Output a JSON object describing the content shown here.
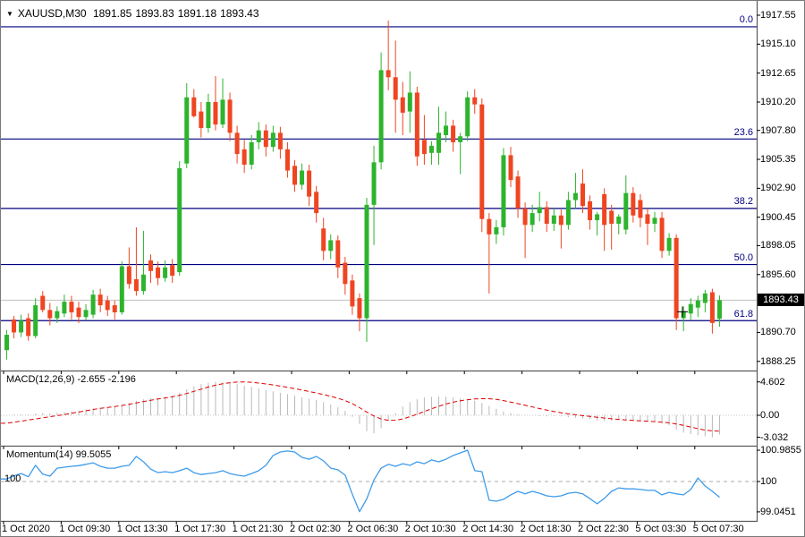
{
  "header": {
    "dropdown_icon": "▼",
    "symbol": "XAUUSD,M30",
    "open": "1891.85",
    "high": "1893.83",
    "low": "1891.18",
    "close": "1893.43"
  },
  "colors": {
    "bull_candle": "#2db42d",
    "bear_candle": "#ef4521",
    "fib_line": "#000080",
    "current_price_line": "#c0c0c0",
    "price_marker_bg": "#000000",
    "price_marker_text": "#ffffff",
    "macd_histogram": "#b9b9b9",
    "macd_signal": "#e00000",
    "macd_zero_line": "#c8c8c8",
    "momentum_line": "#3e9beb",
    "level_line": "#a8a8a8",
    "separator": "#5a5a5a",
    "marker_cross": "#000000"
  },
  "time_axis": {
    "labels": [
      "1 Oct 2020",
      "1 Oct 09:30",
      "1 Oct 13:30",
      "1 Oct 17:30",
      "1 Oct 21:30",
      "2 Oct 02:30",
      "2 Oct 06:30",
      "2 Oct 10:30",
      "2 Oct 14:30",
      "2 Oct 18:30",
      "2 Oct 22:30",
      "5 Oct 03:30",
      "5 Oct 07:30"
    ]
  },
  "chart_data": [
    {
      "type": "candlestick",
      "title": "XAUUSD M30 price panel",
      "ylim": [
        1888.25,
        1917.55
      ],
      "price_axis_ticks": [
        "1917.55",
        "1915.10",
        "1912.65",
        "1910.20",
        "1907.80",
        "1905.35",
        "1902.90",
        "1900.45",
        "1898.05",
        "1895.60",
        "1890.70",
        "1888.25"
      ],
      "current_price": 1893.43,
      "current_price_label": "1893.43",
      "fibonacci": {
        "high": 1916.57,
        "low": 1876.32,
        "levels": [
          {
            "label": "0.0",
            "pct": 0
          },
          {
            "label": "23.6",
            "pct": 23.6
          },
          {
            "label": "38.2",
            "pct": 38.2
          },
          {
            "label": "50.0",
            "pct": 50.0
          },
          {
            "label": "61.8",
            "pct": 61.8
          }
        ]
      },
      "anchor_marker": {
        "x": 762,
        "price": 1892.45
      },
      "candles_ohlc": [
        [
          1889.2,
          1890.9,
          1888.4,
          1890.5
        ],
        [
          1891.8,
          1892.1,
          1890.2,
          1890.7
        ],
        [
          1890.7,
          1892.2,
          1890.3,
          1891.7
        ],
        [
          1891.9,
          1892.3,
          1890.0,
          1890.4
        ],
        [
          1890.4,
          1893.6,
          1890.2,
          1893.0
        ],
        [
          1893.8,
          1894.2,
          1892.4,
          1892.6
        ],
        [
          1892.6,
          1893.2,
          1891.3,
          1891.9
        ],
        [
          1891.9,
          1892.9,
          1891.5,
          1892.5
        ],
        [
          1892.3,
          1893.9,
          1892.0,
          1893.3
        ],
        [
          1893.3,
          1893.8,
          1891.8,
          1892.4
        ],
        [
          1892.8,
          1893.3,
          1891.5,
          1892.0
        ],
        [
          1892.0,
          1893.1,
          1891.7,
          1892.6
        ],
        [
          1892.2,
          1894.3,
          1891.9,
          1893.9
        ],
        [
          1893.9,
          1894.4,
          1892.4,
          1893.0
        ],
        [
          1893.4,
          1893.8,
          1892.1,
          1892.6
        ],
        [
          1893.0,
          1893.4,
          1891.8,
          1892.4
        ],
        [
          1892.4,
          1896.7,
          1892.2,
          1896.3
        ],
        [
          1896.3,
          1897.9,
          1894.4,
          1894.8
        ],
        [
          1895.2,
          1899.6,
          1893.8,
          1894.2
        ],
        [
          1894.2,
          1899.3,
          1893.9,
          1895.6
        ],
        [
          1896.8,
          1897.3,
          1894.9,
          1895.9
        ],
        [
          1896.2,
          1896.7,
          1894.7,
          1895.3
        ],
        [
          1895.3,
          1896.8,
          1895.0,
          1896.2
        ],
        [
          1896.4,
          1896.9,
          1894.9,
          1895.5
        ],
        [
          1895.8,
          1905.2,
          1895.5,
          1904.6
        ],
        [
          1905.0,
          1911.8,
          1904.6,
          1910.6
        ],
        [
          1910.6,
          1911.3,
          1908.9,
          1909.0
        ],
        [
          1909.4,
          1910.2,
          1907.2,
          1908.0
        ],
        [
          1908.0,
          1910.9,
          1907.6,
          1910.2
        ],
        [
          1910.2,
          1912.4,
          1907.8,
          1908.3
        ],
        [
          1908.3,
          1912.2,
          1908.0,
          1910.4
        ],
        [
          1910.4,
          1911.0,
          1906.9,
          1907.6
        ],
        [
          1907.6,
          1908.2,
          1905.0,
          1905.8
        ],
        [
          1906.2,
          1907.0,
          1904.2,
          1904.9
        ],
        [
          1904.9,
          1907.4,
          1904.5,
          1906.8
        ],
        [
          1906.8,
          1908.5,
          1906.2,
          1907.8
        ],
        [
          1907.8,
          1908.3,
          1905.6,
          1906.4
        ],
        [
          1906.4,
          1908.2,
          1906.0,
          1907.6
        ],
        [
          1907.6,
          1908.1,
          1905.4,
          1906.2
        ],
        [
          1906.2,
          1906.8,
          1903.8,
          1904.4
        ],
        [
          1904.8,
          1905.3,
          1902.6,
          1903.2
        ],
        [
          1903.2,
          1905.0,
          1902.8,
          1904.4
        ],
        [
          1904.4,
          1904.9,
          1901.4,
          1902.2
        ],
        [
          1902.6,
          1903.1,
          1900.0,
          1900.8
        ],
        [
          1899.5,
          1900.4,
          1896.8,
          1897.6
        ],
        [
          1897.6,
          1899.0,
          1896.9,
          1898.5
        ],
        [
          1898.5,
          1898.9,
          1895.3,
          1896.2
        ],
        [
          1896.6,
          1897.1,
          1893.9,
          1894.8
        ],
        [
          1895.1,
          1895.6,
          1892.2,
          1892.9
        ],
        [
          1893.6,
          1894.0,
          1890.8,
          1891.9
        ],
        [
          1891.9,
          1902.1,
          1889.9,
          1901.5
        ],
        [
          1901.5,
          1906.5,
          1898.1,
          1905.1
        ],
        [
          1905.1,
          1914.4,
          1904.5,
          1912.9
        ],
        [
          1912.9,
          1917.1,
          1911.2,
          1912.3
        ],
        [
          1912.3,
          1915.4,
          1907.6,
          1910.4
        ],
        [
          1910.6,
          1911.9,
          1907.4,
          1909.3
        ],
        [
          1909.4,
          1912.8,
          1907.6,
          1911.0
        ],
        [
          1911.0,
          1911.5,
          1904.8,
          1905.6
        ],
        [
          1907.0,
          1909.1,
          1904.9,
          1905.8
        ],
        [
          1905.9,
          1906.9,
          1904.9,
          1906.5
        ],
        [
          1905.9,
          1909.8,
          1904.9,
          1907.6
        ],
        [
          1907.4,
          1909.4,
          1906.8,
          1908.2
        ],
        [
          1908.2,
          1908.7,
          1906.0,
          1906.8
        ],
        [
          1906.8,
          1907.6,
          1904.1,
          1907.3
        ],
        [
          1907.3,
          1911.1,
          1906.9,
          1910.6
        ],
        [
          1910.6,
          1911.3,
          1909.2,
          1910.0
        ],
        [
          1910.0,
          1910.5,
          1899.2,
          1900.3
        ],
        [
          1900.3,
          1900.8,
          1894.0,
          1899.0
        ],
        [
          1899.0,
          1900.2,
          1898.2,
          1899.6
        ],
        [
          1899.6,
          1906.3,
          1898.9,
          1905.7
        ],
        [
          1905.7,
          1906.4,
          1903.0,
          1903.6
        ],
        [
          1903.9,
          1904.4,
          1900.4,
          1901.2
        ],
        [
          1901.2,
          1901.7,
          1897.0,
          1899.8
        ],
        [
          1899.8,
          1901.5,
          1899.2,
          1900.8
        ],
        [
          1900.8,
          1902.6,
          1900.1,
          1901.3
        ],
        [
          1901.3,
          1901.8,
          1899.2,
          1899.9
        ],
        [
          1899.9,
          1901.2,
          1899.3,
          1900.6
        ],
        [
          1900.6,
          1901.1,
          1897.8,
          1899.8
        ],
        [
          1899.8,
          1902.6,
          1899.4,
          1901.9
        ],
        [
          1901.9,
          1904.2,
          1901.2,
          1902.5
        ],
        [
          1903.3,
          1904.5,
          1900.8,
          1901.4
        ],
        [
          1901.8,
          1902.3,
          1899.4,
          1900.2
        ],
        [
          1900.2,
          1900.9,
          1898.9,
          1900.7
        ],
        [
          1902.4,
          1902.9,
          1897.6,
          1899.8
        ],
        [
          1901.0,
          1901.5,
          1897.7,
          1899.9
        ],
        [
          1899.9,
          1900.7,
          1899.0,
          1900.5
        ],
        [
          1899.4,
          1904.0,
          1899.0,
          1902.5
        ],
        [
          1902.5,
          1903.0,
          1900.0,
          1900.6
        ],
        [
          1901.9,
          1902.4,
          1899.6,
          1900.4
        ],
        [
          1900.7,
          1901.2,
          1898.1,
          1899.9
        ],
        [
          1899.9,
          1900.9,
          1899.2,
          1900.4
        ],
        [
          1900.4,
          1900.9,
          1897.0,
          1897.6
        ],
        [
          1897.6,
          1899.1,
          1897.2,
          1898.7
        ],
        [
          1898.7,
          1899.0,
          1890.9,
          1891.9
        ],
        [
          1891.9,
          1892.9,
          1890.8,
          1892.5
        ],
        [
          1892.3,
          1893.6,
          1891.7,
          1893.1
        ],
        [
          1892.8,
          1893.8,
          1892.0,
          1893.4
        ],
        [
          1893.2,
          1894.3,
          1892.4,
          1894.0
        ],
        [
          1894.1,
          1894.4,
          1890.6,
          1891.5
        ],
        [
          1891.85,
          1893.83,
          1891.18,
          1893.43
        ]
      ]
    },
    {
      "type": "macd",
      "label": "MACD(12,26,9) -2.655 -2.196",
      "axis_ticks": [
        "4.602",
        "0.00",
        "-3.032"
      ],
      "ylim": [
        -3.032,
        4.602
      ],
      "histogram": [
        0.05,
        0.1,
        0.12,
        0.15,
        0.25,
        0.3,
        0.28,
        0.35,
        0.45,
        0.55,
        0.65,
        0.8,
        0.95,
        1.05,
        1.1,
        1.2,
        1.4,
        1.7,
        2.0,
        2.2,
        2.3,
        2.4,
        2.5,
        2.7,
        3.1,
        3.6,
        4.0,
        4.3,
        4.5,
        4.602,
        4.55,
        4.45,
        4.3,
        4.1,
        3.9,
        3.7,
        3.5,
        3.3,
        3.1,
        2.9,
        2.7,
        2.5,
        2.3,
        2.1,
        1.8,
        1.5,
        1.1,
        0.6,
        -0.2,
        -1.2,
        -2.2,
        -2.5,
        -1.8,
        -0.8,
        0.3,
        1.2,
        1.8,
        2.2,
        2.45,
        2.55,
        2.6,
        2.55,
        2.45,
        2.35,
        2.2,
        2.0,
        1.7,
        1.3,
        0.9,
        0.55,
        0.3,
        0.15,
        0.05,
        -0.05,
        -0.1,
        -0.15,
        -0.1,
        -0.15,
        -0.25,
        -0.35,
        -0.45,
        -0.55,
        -0.7,
        -0.8,
        -0.75,
        -0.65,
        -0.6,
        -0.65,
        -0.75,
        -0.85,
        -0.95,
        -1.1,
        -1.4,
        -2.0,
        -2.4,
        -2.6,
        -2.75,
        -2.9,
        -3.032,
        -2.655
      ],
      "signal": [
        -1.1,
        -0.95,
        -0.8,
        -0.65,
        -0.5,
        -0.35,
        -0.2,
        -0.05,
        0.1,
        0.28,
        0.45,
        0.62,
        0.8,
        0.95,
        1.08,
        1.2,
        1.35,
        1.52,
        1.7,
        1.9,
        2.08,
        2.25,
        2.4,
        2.55,
        2.75,
        3.0,
        3.3,
        3.6,
        3.9,
        4.15,
        4.35,
        4.5,
        4.58,
        4.6,
        4.55,
        4.45,
        4.32,
        4.18,
        4.02,
        3.85,
        3.67,
        3.48,
        3.28,
        3.08,
        2.86,
        2.62,
        2.35,
        2.02,
        1.6,
        1.05,
        0.45,
        -0.1,
        -0.5,
        -0.7,
        -0.68,
        -0.5,
        -0.2,
        0.15,
        0.52,
        0.9,
        1.25,
        1.55,
        1.8,
        2.0,
        2.15,
        2.25,
        2.3,
        2.28,
        2.18,
        2.02,
        1.82,
        1.6,
        1.38,
        1.15,
        0.93,
        0.72,
        0.52,
        0.35,
        0.2,
        0.07,
        -0.05,
        -0.16,
        -0.27,
        -0.38,
        -0.48,
        -0.57,
        -0.64,
        -0.7,
        -0.76,
        -0.82,
        -0.88,
        -0.95,
        -1.05,
        -1.2,
        -1.4,
        -1.62,
        -1.85,
        -2.05,
        -2.15,
        -2.196
      ]
    },
    {
      "type": "momentum",
      "label": "Momentum(14) 99.5055",
      "axis_ticks": [
        "100.9855",
        "100",
        "99.0451"
      ],
      "level": 100,
      "level_label": "100",
      "ylim": [
        99.0451,
        100.9855
      ],
      "values": [
        100.08,
        100.18,
        100.25,
        100.15,
        100.51,
        100.23,
        100.17,
        100.42,
        100.45,
        100.48,
        100.5,
        100.54,
        100.59,
        100.48,
        100.42,
        100.42,
        100.48,
        100.51,
        100.79,
        100.62,
        100.39,
        100.28,
        100.31,
        100.28,
        100.34,
        100.42,
        100.28,
        100.22,
        100.25,
        100.28,
        100.34,
        100.25,
        100.2,
        100.17,
        100.25,
        100.34,
        100.51,
        100.82,
        100.93,
        100.96,
        100.93,
        100.76,
        100.7,
        100.79,
        100.65,
        100.42,
        100.37,
        100.2,
        99.6,
        99.05,
        99.45,
        100.05,
        100.42,
        100.54,
        100.48,
        100.56,
        100.51,
        100.62,
        100.56,
        100.68,
        100.62,
        100.7,
        100.82,
        100.9,
        100.9855,
        100.34,
        100.31,
        99.41,
        99.38,
        99.44,
        99.58,
        99.69,
        99.61,
        99.69,
        99.63,
        99.55,
        99.52,
        99.55,
        99.63,
        99.66,
        99.61,
        99.46,
        99.3,
        99.47,
        99.69,
        99.8,
        99.77,
        99.77,
        99.75,
        99.72,
        99.72,
        99.58,
        99.66,
        99.61,
        99.58,
        99.75,
        100.11,
        99.86,
        99.69,
        99.5055
      ]
    }
  ]
}
